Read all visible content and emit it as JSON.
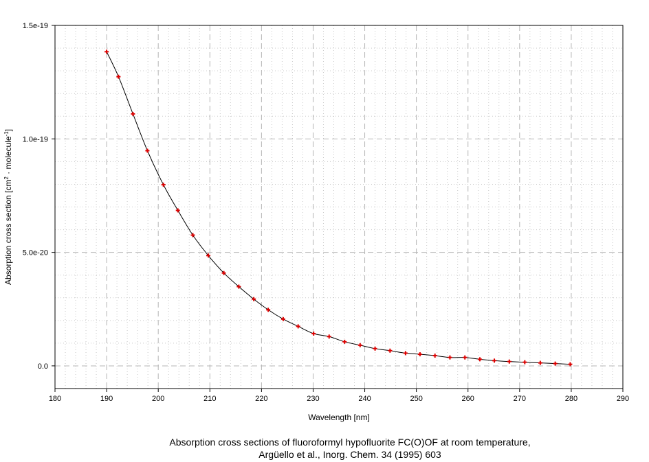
{
  "chart_data": {
    "type": "line",
    "xlabel": "Wavelength [nm]",
    "ylabel_main": "Absorption cross section [cm",
    "ylabel_sup1": "2",
    "ylabel_mid": " · molecule",
    "ylabel_sup2": "-1",
    "ylabel_end": "]",
    "xlim": [
      180,
      290
    ],
    "ylim": [
      -1e-20,
      1.5e-19
    ],
    "x_ticks": [
      180,
      190,
      200,
      210,
      220,
      230,
      240,
      250,
      260,
      270,
      280,
      290
    ],
    "x_tick_labels": [
      "180",
      "190",
      "200",
      "210",
      "220",
      "230",
      "240",
      "250",
      "260",
      "270",
      "280",
      "290"
    ],
    "y_ticks": [
      0,
      5e-20,
      1e-19,
      1.5e-19
    ],
    "y_tick_labels": [
      "0.0",
      "5.0e-20",
      "1.0e-19",
      "1.5e-19"
    ],
    "grid": true,
    "line_color": "#000000",
    "marker_color": "#dd0000",
    "series": [
      {
        "x": [
          190,
          192.3,
          195.1,
          197.9,
          201,
          203.8,
          206.7,
          209.7,
          212.7,
          215.6,
          218.5,
          221.3,
          224.2,
          227.1,
          230.1,
          233.1,
          236.1,
          239.1,
          242,
          244.9,
          247.9,
          250.7,
          253.6,
          256.5,
          259.4,
          262.3,
          265.1,
          268,
          271,
          274,
          276.9,
          279.8
        ],
        "y": [
          1.384e-19,
          1.274e-19,
          1.11e-19,
          9.48e-20,
          7.98e-20,
          6.85e-20,
          5.76e-20,
          4.86e-20,
          4.09e-20,
          3.49e-20,
          2.94e-20,
          2.47e-20,
          2.06e-20,
          1.74e-20,
          1.42e-20,
          1.29e-20,
          1.06e-20,
          9.1e-21,
          7.6e-21,
          6.7e-21,
          5.6e-21,
          5.1e-21,
          4.5e-21,
          3.7e-21,
          3.7e-21,
          2.9e-21,
          2.3e-21,
          1.9e-21,
          1.6e-21,
          1.3e-21,
          1e-21,
          7e-22
        ]
      }
    ]
  },
  "caption_line1": "Absorption cross sections of fluoroformyl hypofluorite FC(O)OF at room temperature,",
  "caption_line2": "Argüello et al., Inorg. Chem. 34 (1995) 603"
}
